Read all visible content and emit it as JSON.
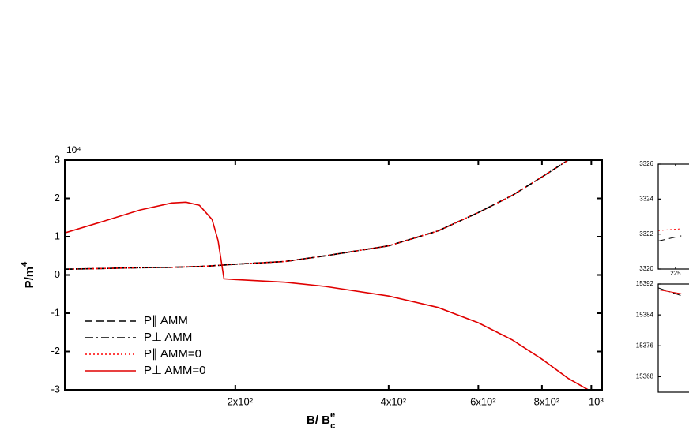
{
  "chart_data": [
    {
      "type": "line",
      "x_log": true,
      "x_label": "B/ B",
      "x_label_sup": "e",
      "x_label_sub": "c",
      "y_label": "P/m",
      "y_label_sup": "4",
      "y_multiplier": "10⁴",
      "xlim": [
        92.5,
        1050
      ],
      "ylim": [
        -3,
        3
      ],
      "xticks": [
        {
          "value": 200,
          "label": "2x10²"
        },
        {
          "value": 400,
          "label": "4x10²"
        },
        {
          "value": 600,
          "label": "6x10²"
        },
        {
          "value": 800,
          "label": "8x10²"
        },
        {
          "value": 1000,
          "label": "10³"
        }
      ],
      "yticks": [
        -3,
        -2,
        -1,
        0,
        1,
        2,
        3
      ],
      "legend": "lower left",
      "x": [
        92.5,
        110,
        130,
        150,
        160,
        170,
        180,
        185,
        190,
        200,
        250,
        300,
        400,
        500,
        600,
        700,
        800,
        900,
        986
      ],
      "series": [
        {
          "name": "P∥  AMM",
          "color": "#000000",
          "dash": "dashed",
          "values": [
            0.15,
            0.17,
            0.19,
            0.2,
            0.21,
            0.22,
            0.24,
            0.25,
            0.26,
            0.28,
            0.35,
            0.5,
            0.76,
            1.15,
            1.63,
            2.08,
            2.56,
            3.0,
            null
          ]
        },
        {
          "name": "P⊥  AMM",
          "color": "#000000",
          "dash": "dashdot",
          "values": [
            0.15,
            0.17,
            0.19,
            0.2,
            0.21,
            0.22,
            0.24,
            0.25,
            0.26,
            0.28,
            0.35,
            0.5,
            0.76,
            1.15,
            1.63,
            2.08,
            2.56,
            3.0,
            null
          ]
        },
        {
          "name": "P∥   AMM=0",
          "color": "#ff0000",
          "dash": "dotted",
          "values": [
            0.15,
            0.17,
            0.19,
            0.2,
            0.21,
            0.22,
            0.24,
            0.25,
            0.26,
            0.28,
            0.35,
            0.5,
            0.76,
            1.15,
            1.63,
            2.08,
            2.56,
            3.0,
            null
          ]
        },
        {
          "name": "P⊥   AMM=0",
          "color": "#e00000",
          "dash": "solid",
          "values": [
            1.1,
            1.4,
            1.7,
            1.88,
            1.9,
            1.82,
            1.45,
            0.9,
            -0.1,
            -0.12,
            -0.19,
            -0.3,
            -0.55,
            -0.85,
            -1.25,
            -1.7,
            -2.2,
            -2.7,
            -3.0
          ]
        }
      ]
    },
    {
      "type": "line",
      "x_log": false,
      "xlim": [
        223.5,
        230
      ],
      "ylim": [
        3320,
        3326
      ],
      "xticks": [
        225
      ],
      "yticks": [
        3320,
        3322,
        3324,
        3326
      ],
      "x": [
        223.5,
        225.5
      ],
      "series": [
        {
          "color": "#000000",
          "dash": "dashed",
          "values": [
            3321.6,
            3321.9
          ]
        },
        {
          "color": "#ff0000",
          "dash": "dotted",
          "values": [
            3322.2,
            3322.3
          ]
        }
      ]
    },
    {
      "type": "line",
      "x_log": false,
      "xlim": [
        223.5,
        230
      ],
      "ylim": [
        15364,
        15392
      ],
      "yticks": [
        15368,
        15376,
        15384,
        15392
      ],
      "x": [
        223.5,
        225.5
      ],
      "series": [
        {
          "color": "#000000",
          "dash": "dashdot",
          "values": [
            15391,
            15389
          ]
        },
        {
          "color": "#e00000",
          "dash": "solid",
          "values": [
            15390.5,
            15389.5
          ]
        }
      ]
    }
  ]
}
